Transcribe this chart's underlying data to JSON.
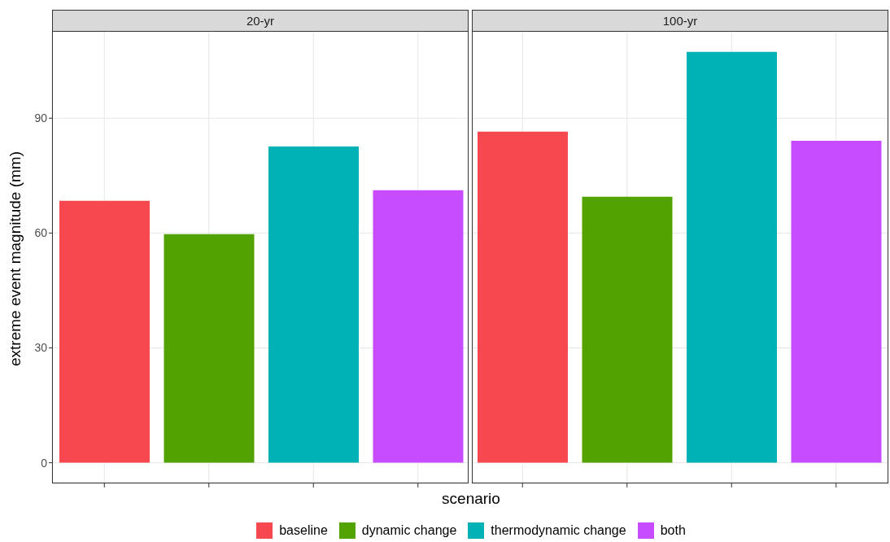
{
  "chart_data": {
    "type": "bar",
    "xlabel": "scenario",
    "ylabel": "extreme event magnitude (mm)",
    "annotations": [
      "20-yr",
      "100-yr"
    ],
    "categories": [
      null,
      null,
      null,
      null,
      null,
      null,
      null,
      null
    ],
    "series": [
      {
        "name": "baseline",
        "color": "#f8484f",
        "values": [
          68.4,
          null,
          null,
          null,
          86.5,
          null,
          null,
          null
        ]
      },
      {
        "name": "dynamic change",
        "color": "#53a300",
        "values": [
          null,
          59.7,
          null,
          null,
          null,
          69.5,
          null,
          null
        ]
      },
      {
        "name": "thermodynamic change",
        "color": "#00b2b6",
        "values": [
          null,
          null,
          82.6,
          null,
          null,
          null,
          107.3,
          null
        ]
      },
      {
        "name": "both",
        "color": "#c84cff",
        "values": [
          null,
          null,
          null,
          71.2,
          null,
          null,
          null,
          84.1
        ]
      }
    ],
    "ylim": [
      -5.4,
      112.8
    ],
    "yticks": [
      0,
      30,
      60,
      90
    ],
    "grid": true,
    "legend": "bottom",
    "tick_labels": "y"
  }
}
